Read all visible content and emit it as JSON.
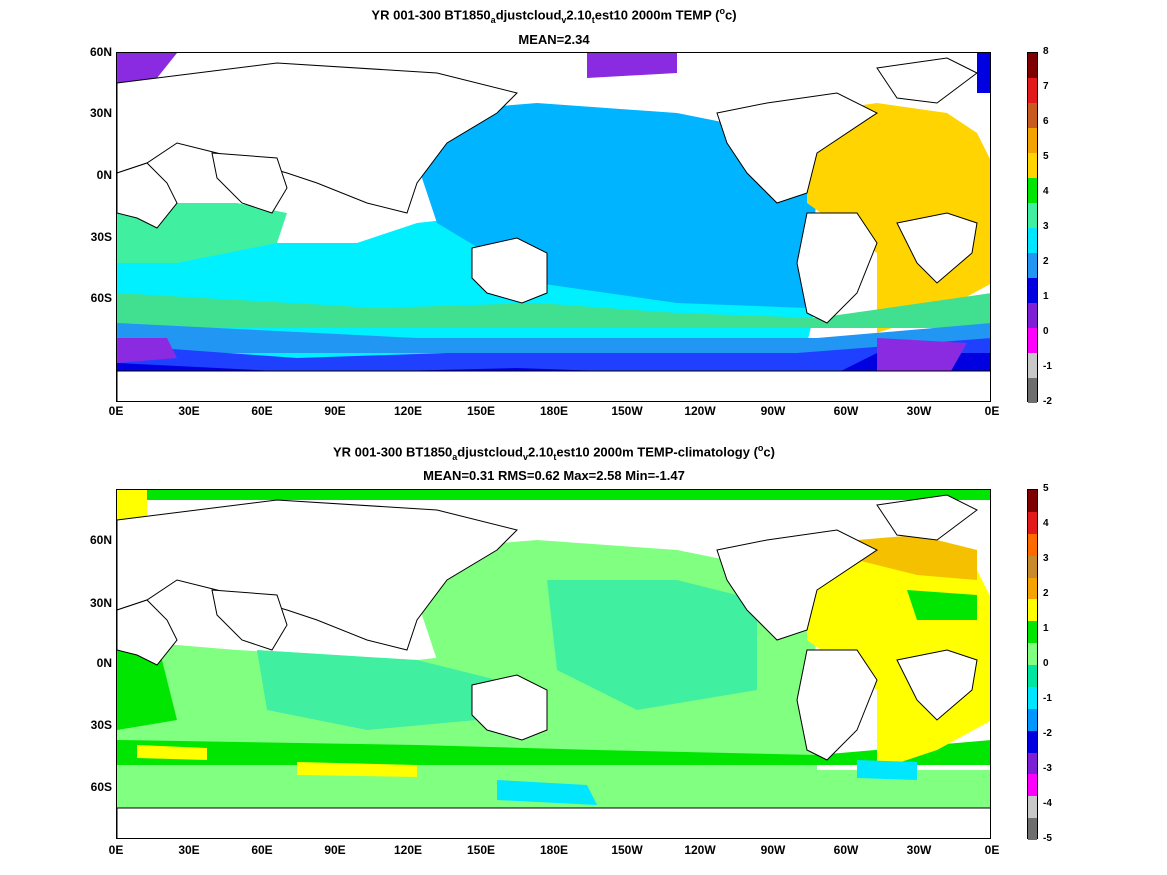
{
  "panels": [
    {
      "title_prefix": "YR 001-300 BT1850",
      "title_sub1": "a",
      "title_mid1": "djustcloud",
      "title_sub2": "v",
      "title_mid2": "2.10",
      "title_sub3": "t",
      "title_rest": "est10 2000m TEMP (",
      "title_sup": "o",
      "title_unit_end": "c)",
      "stats": [
        "MEAN=2.34"
      ],
      "colorbar_ticks": [
        "8",
        "7",
        "6",
        "5",
        "4",
        "3",
        "2",
        "1",
        "0",
        "-1",
        "-2"
      ],
      "colorbar_colors": [
        "#7f0000",
        "#e31a1c",
        "#c85a1e",
        "#f5a300",
        "#ffd400",
        "#00e600",
        "#40f0a0",
        "#00e6ff",
        "#2196f3",
        "#0000e0",
        "#7e1fd6",
        "#ff00ff",
        "#c8c8c8",
        "#6e6e6e"
      ],
      "ocean_regions": [
        {
          "region": "north-pacific",
          "color": "#00b4ff"
        },
        {
          "region": "indian-ocean",
          "color": "#00f0ff"
        },
        {
          "region": "atlantic",
          "color": "#ffd400"
        },
        {
          "region": "southern-ocean",
          "color": "#2060ff"
        },
        {
          "region": "antarctic-shelf",
          "color": "#0000e0"
        },
        {
          "region": "polar",
          "color": "#8a2be2"
        }
      ]
    },
    {
      "title_prefix": "YR 001-300 BT1850",
      "title_sub1": "a",
      "title_mid1": "djustcloud",
      "title_sub2": "v",
      "title_mid2": "2.10",
      "title_sub3": "t",
      "title_rest": "est10 2000m TEMP-climatology (",
      "title_sup": "o",
      "title_unit_end": "c)",
      "stats": [
        "MEAN=0.31",
        "RMS=0.62",
        "Max=2.58",
        "Min=-1.47"
      ],
      "colorbar_ticks": [
        "5",
        "4",
        "3",
        "2",
        "1",
        "0",
        "-1",
        "-2",
        "-3",
        "-4",
        "-5"
      ],
      "colorbar_colors": [
        "#7f0000",
        "#e31a1c",
        "#ff6a00",
        "#c88a2a",
        "#f5a300",
        "#ffff00",
        "#00e600",
        "#80ff80",
        "#00e6a0",
        "#00e6ff",
        "#0096ff",
        "#0000e0",
        "#7e1fd6",
        "#ff00ff",
        "#c8c8c8",
        "#6e6e6e"
      ],
      "ocean_regions": [
        {
          "region": "pacific",
          "color": "#80ff80"
        },
        {
          "region": "indian-ocean",
          "color": "#40f0a0"
        },
        {
          "region": "atlantic",
          "color": "#ffff00"
        },
        {
          "region": "southern-ocean",
          "color": "#80ff80"
        },
        {
          "region": "band",
          "color": "#00e600"
        },
        {
          "region": "north-atlantic",
          "color": "#f5c000"
        }
      ]
    }
  ],
  "lat_labels": [
    "60N",
    "30N",
    "0N",
    "30S",
    "60S"
  ],
  "lon_labels": [
    "0E",
    "30E",
    "60E",
    "90E",
    "120E",
    "150E",
    "180E",
    "150W",
    "120W",
    "90W",
    "60W",
    "30W",
    "0E"
  ]
}
